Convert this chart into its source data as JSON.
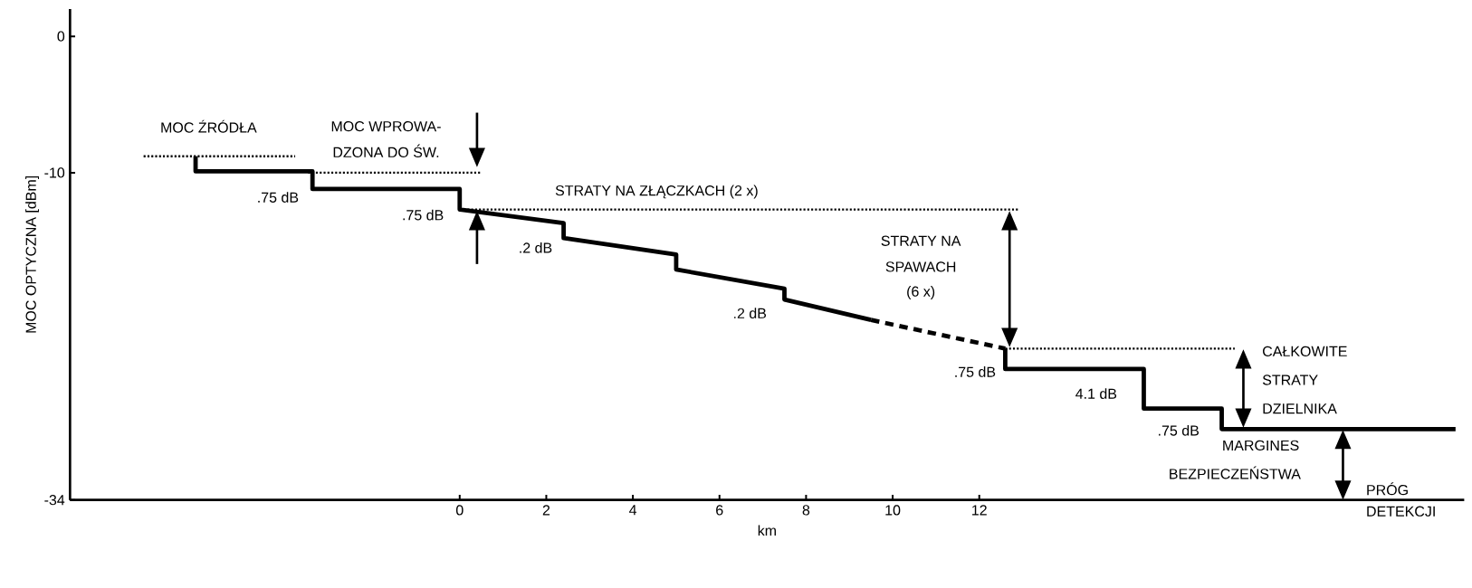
{
  "chart_data": {
    "type": "line",
    "xlabel": "km",
    "ylabel": "MOC OPTYCZNA [dBm]",
    "xlim": [
      -9,
      23.2
    ],
    "ylim": [
      -34,
      2
    ],
    "xticks": [
      0,
      2,
      4,
      6,
      8,
      10,
      12
    ],
    "yticks": [
      0,
      -10,
      -34
    ],
    "series": [
      {
        "line_style": "solid",
        "color": "#000000",
        "x": [
          -6.1,
          -6.1,
          -3.4,
          -3.4,
          0,
          0,
          2.4,
          2.4,
          5.0,
          5.0,
          7.5,
          7.5,
          9.5
        ],
        "values": [
          -8.8,
          -9.9,
          -9.9,
          -11.2,
          -11.2,
          -12.7,
          -13.7,
          -14.8,
          -16.0,
          -17.1,
          -18.5,
          -19.3,
          -20.8
        ]
      },
      {
        "line_style": "dashed",
        "color": "#000000",
        "x": [
          9.5,
          12.6
        ],
        "values": [
          -20.8,
          -22.9
        ]
      },
      {
        "line_style": "solid",
        "color": "#000000",
        "x": [
          12.6,
          12.6,
          15.8,
          15.8,
          17.6,
          17.6,
          23.0
        ],
        "values": [
          -22.9,
          -24.4,
          -24.4,
          -27.3,
          -27.3,
          -28.8,
          -28.8
        ]
      },
      {
        "line_style": "dotted",
        "color": "#000000",
        "x": [
          -7.3,
          -3.8
        ],
        "values": [
          -8.8,
          -8.8
        ]
      },
      {
        "line_style": "dotted",
        "color": "#000000",
        "x": [
          -3.5,
          0.5
        ],
        "values": [
          -10,
          -10
        ]
      },
      {
        "line_style": "dotted",
        "color": "#000000",
        "x": [
          0,
          12.9
        ],
        "values": [
          -12.7,
          -12.7
        ]
      },
      {
        "line_style": "dotted",
        "color": "#000000",
        "x": [
          12.6,
          17.9
        ],
        "values": [
          -22.9,
          -22.9
        ]
      }
    ],
    "annotations": [
      "MOC ŹRÓDŁA",
      "MOC WPROWA-",
      "DZONA DO ŚW.",
      ".75 dB",
      ".75 dB",
      "STRATY NA ZŁĄCZKACH (2 x)",
      ".2 dB",
      ".2 dB",
      "STRATY NA",
      "SPAWACH",
      "(6 x)",
      ".75 dB",
      "4.1 dB",
      ".75 dB",
      "CAŁKOWITE",
      "STRATY",
      "DZIELNIKA",
      "MARGINES",
      "BEZPIECZEŃSTWA",
      "PRÓG",
      "DETEKCJI"
    ]
  }
}
